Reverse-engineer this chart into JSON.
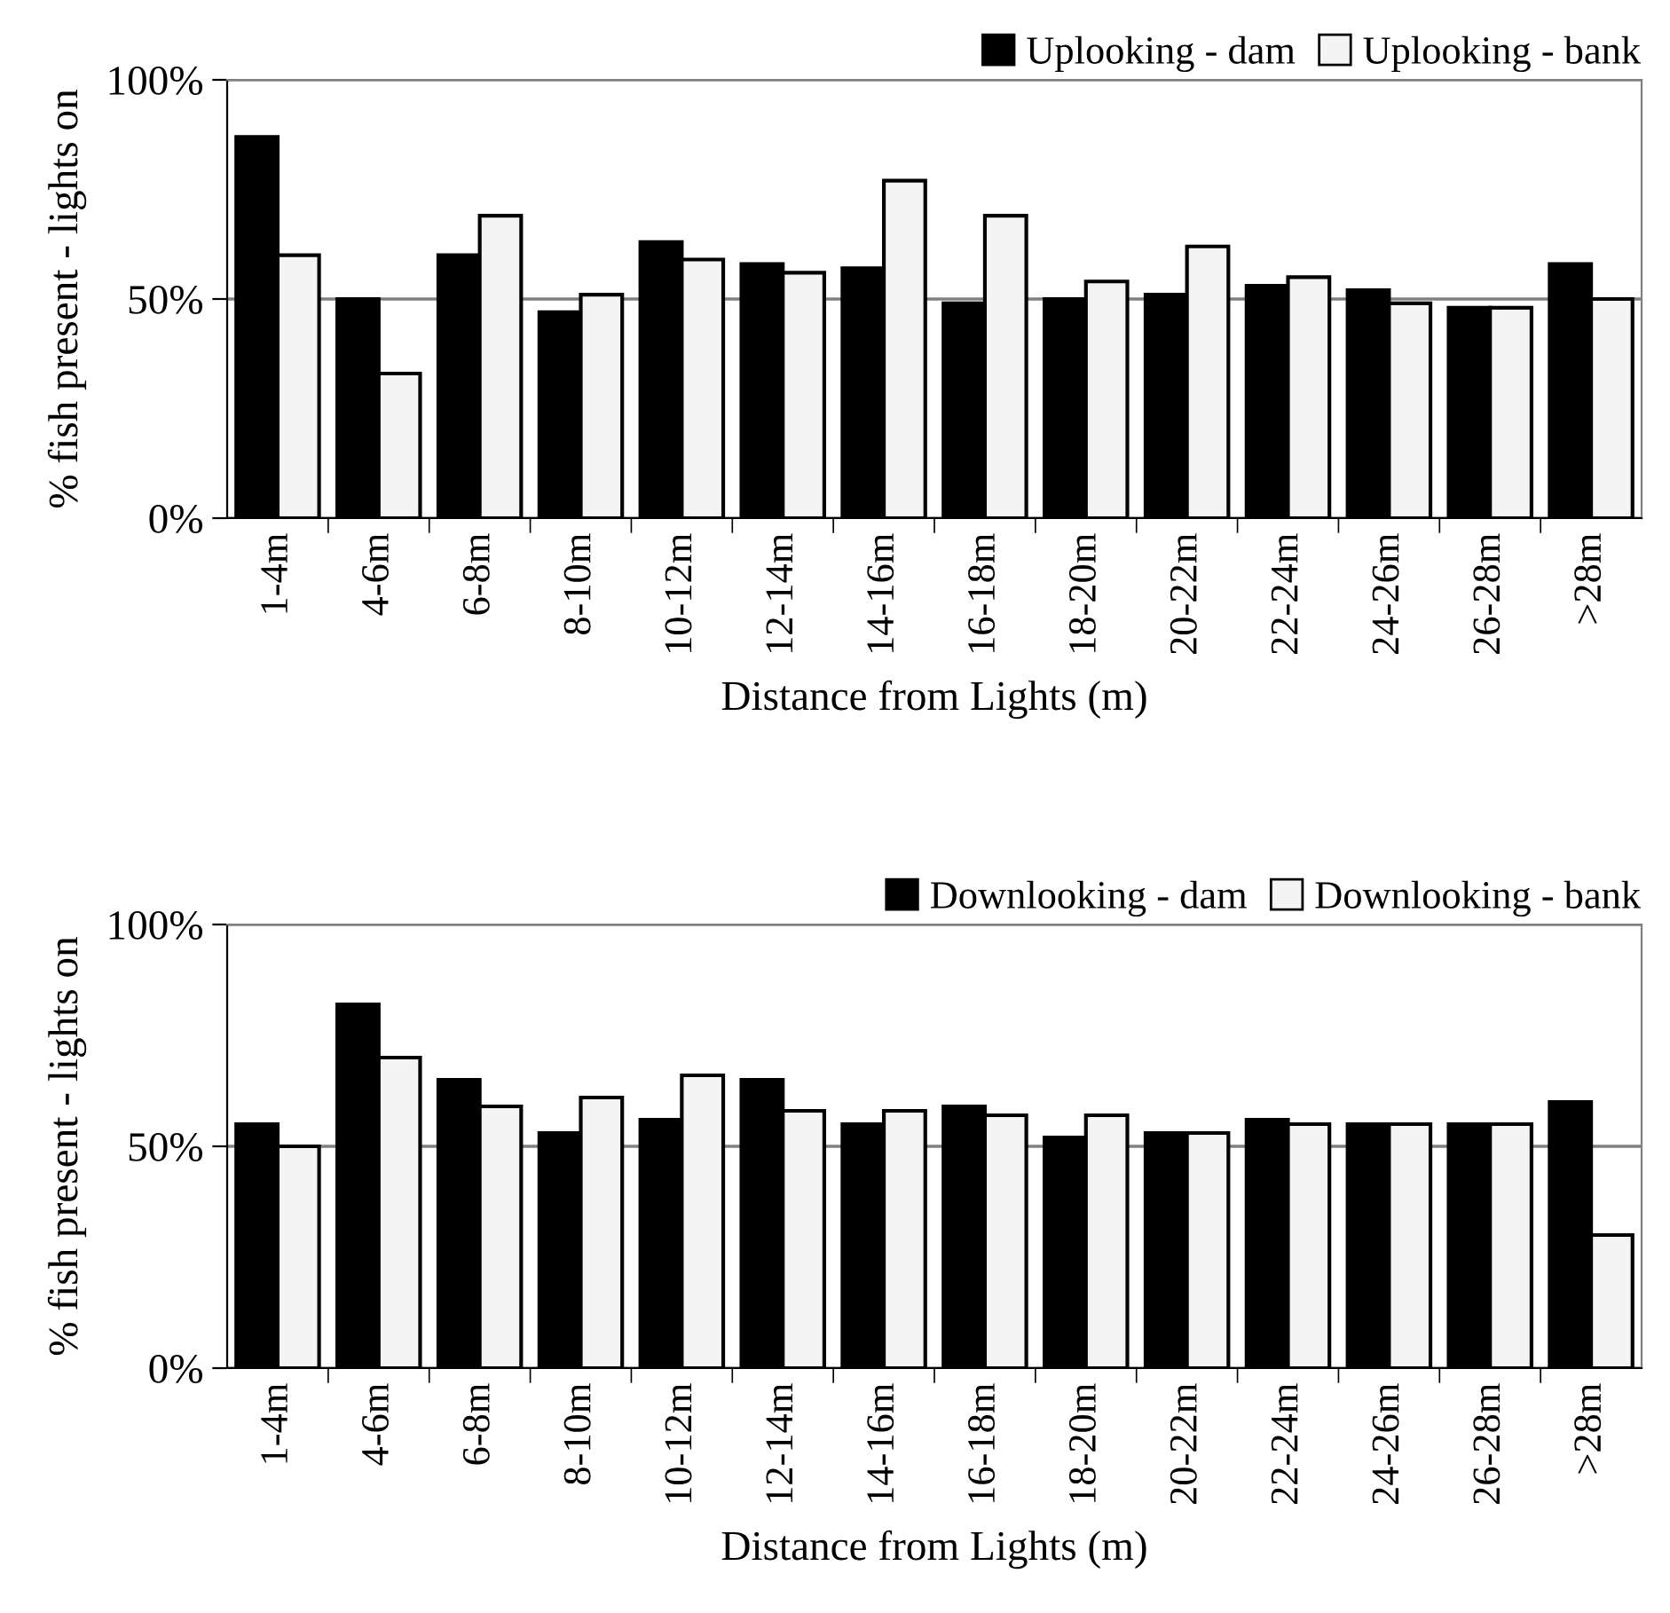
{
  "chart_data": [
    {
      "type": "bar",
      "xlabel": "Distance from Lights (m)",
      "ylabel": "% fish present - lights on",
      "categories": [
        "1-4m",
        "4-6m",
        "6-8m",
        "8-10m",
        "10-12m",
        "12-14m",
        "14-16m",
        "16-18m",
        "18-20m",
        "20-22m",
        "22-24m",
        "24-26m",
        "26-28m",
        ">28m"
      ],
      "series": [
        {
          "name": "Uplooking - dam",
          "color": "#000000",
          "values": [
            87,
            50,
            60,
            47,
            63,
            58,
            57,
            49,
            50,
            51,
            53,
            52,
            48,
            58
          ]
        },
        {
          "name": "Uplooking - bank",
          "color": "#f4f4f4",
          "values": [
            60,
            33,
            69,
            51,
            59,
            56,
            77,
            69,
            54,
            62,
            55,
            49,
            48,
            50
          ]
        }
      ],
      "ylim": [
        0,
        100
      ],
      "yticks": [
        {
          "value": 0,
          "label": "0%"
        },
        {
          "value": 50,
          "label": "50%"
        },
        {
          "value": 100,
          "label": "100%"
        }
      ],
      "grid": "y",
      "legend": "top right"
    },
    {
      "type": "bar",
      "xlabel": "Distance from Lights (m)",
      "ylabel": "% fish present - lights on",
      "categories": [
        "1-4m",
        "4-6m",
        "6-8m",
        "8-10m",
        "10-12m",
        "12-14m",
        "14-16m",
        "16-18m",
        "18-20m",
        "20-22m",
        "22-24m",
        "24-26m",
        "26-28m",
        ">28m"
      ],
      "series": [
        {
          "name": "Downlooking - dam",
          "color": "#000000",
          "values": [
            55,
            82,
            65,
            53,
            56,
            65,
            55,
            59,
            52,
            53,
            56,
            55,
            55,
            60
          ]
        },
        {
          "name": "Downlooking - bank",
          "color": "#f4f4f4",
          "values": [
            50,
            70,
            59,
            61,
            66,
            58,
            58,
            57,
            57,
            53,
            55,
            55,
            55,
            30
          ]
        }
      ],
      "ylim": [
        0,
        100
      ],
      "yticks": [
        {
          "value": 0,
          "label": "0%"
        },
        {
          "value": 50,
          "label": "50%"
        },
        {
          "value": 100,
          "label": "100%"
        }
      ],
      "grid": "y",
      "legend": "top right"
    }
  ]
}
